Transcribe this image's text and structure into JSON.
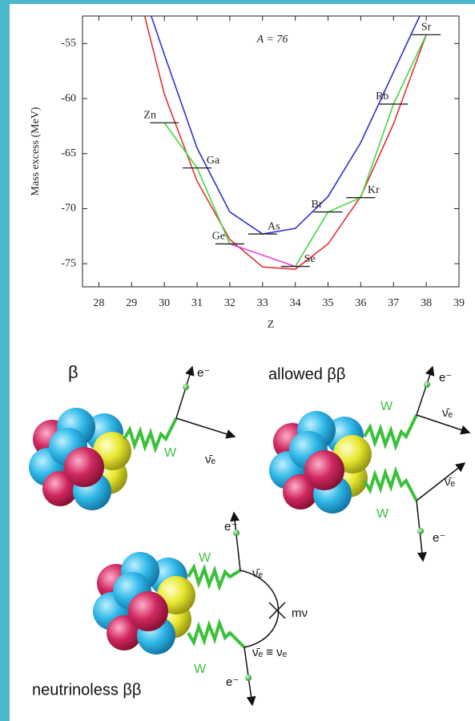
{
  "chart_data": {
    "type": "line",
    "annotation": "A = 76",
    "x_label": "Z",
    "y_label": "Mass excess (MeV)",
    "xlim": [
      27.5,
      39
    ],
    "ylim": [
      -77.1,
      -52.5
    ],
    "xticks": [
      28,
      29,
      30,
      31,
      32,
      33,
      34,
      35,
      36,
      37,
      38,
      39
    ],
    "yticks": [
      -55,
      -60,
      -65,
      -70,
      -75
    ],
    "series": [
      {
        "color": "#e03030",
        "x": [
          29.4,
          30,
          31,
          32,
          33,
          34,
          35,
          36,
          37,
          38
        ],
        "values": [
          -52.5,
          -59.6,
          -67.5,
          -72.8,
          -75.3,
          -75.5,
          -73.2,
          -68.9,
          -62.3,
          -54.2
        ]
      },
      {
        "color": "#3030d0",
        "x": [
          29.6,
          30,
          31,
          32,
          33,
          34,
          35,
          36,
          37,
          37.8
        ],
        "values": [
          -52.5,
          -56,
          -64.5,
          -70.3,
          -72.3,
          -71.8,
          -68.9,
          -64,
          -57.6,
          -52.5
        ]
      },
      {
        "color": "#40d840",
        "x": [
          30,
          31,
          32
        ],
        "values": [
          -62.2,
          -66.3,
          -73.2
        ]
      },
      {
        "color": "#40d840",
        "x": [
          34,
          35,
          36,
          37,
          38
        ],
        "values": [
          -75.25,
          -70.3,
          -69.0,
          -60.5,
          -54.2
        ]
      },
      {
        "color": "#e040e0",
        "x": [
          32,
          34
        ],
        "values": [
          -73.2,
          -75.25
        ]
      }
    ],
    "nuclides": {
      "labels": [
        "Zn",
        "Ga",
        "Ge",
        "As",
        "Se",
        "Br",
        "Kr",
        "Rb",
        "Sr"
      ],
      "x": [
        30,
        31,
        32,
        33,
        34,
        35,
        36,
        37,
        38
      ],
      "values": [
        -62.2,
        -66.3,
        -73.2,
        -72.3,
        -75.25,
        -70.3,
        -69.0,
        -60.5,
        -54.2
      ]
    }
  },
  "diagram": {
    "beta": {
      "title": "β",
      "w": "W",
      "electron": "e⁻",
      "antineutrino": "ν̄ₑ"
    },
    "allowed": {
      "title": "allowed ββ",
      "w1": "W",
      "w2": "W",
      "electron1": "e⁻",
      "electron2": "e⁻",
      "antineutrino1": "ν̄ₑ",
      "antineutrino2": "ν̄ₑ"
    },
    "neutrinoless": {
      "title": "neutrinoless ββ",
      "w1": "W",
      "w2": "W",
      "electron1": "e⁻",
      "electron2": "e⁻",
      "antineutrino": "ν̄ₑ",
      "mass": "mν",
      "identity": "ν̄ₑ ≡ νₑ"
    }
  }
}
